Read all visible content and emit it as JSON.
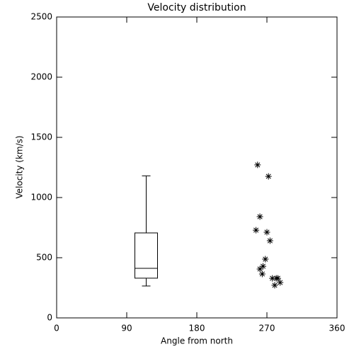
{
  "chart_data": {
    "type": "box-scatter",
    "title": "Velocity distribution",
    "x_label": "Angle from north",
    "y_label": "Velocity (km/s)",
    "xlim": [
      0,
      360
    ],
    "xticks": [
      0,
      90,
      180,
      270,
      360
    ],
    "ylim": [
      0,
      2500
    ],
    "yticks": [
      0,
      500,
      1000,
      1500,
      2000,
      2500
    ],
    "color": "#000000",
    "series": [
      {
        "type": "box",
        "x": 115,
        "whisker_low": 265,
        "q1": 330,
        "median": 412,
        "q3": 706,
        "whisker_high": 1180
      },
      {
        "type": "scatter",
        "marker": "asterisk",
        "x": [
          258,
          272,
          261,
          256,
          270,
          274,
          268,
          265,
          261,
          264,
          277,
          282,
          284,
          287,
          280
        ],
        "values": [
          1271,
          1176,
          841,
          729,
          712,
          641,
          488,
          429,
          406,
          365,
          329,
          329,
          329,
          294,
          271
        ]
      }
    ]
  }
}
